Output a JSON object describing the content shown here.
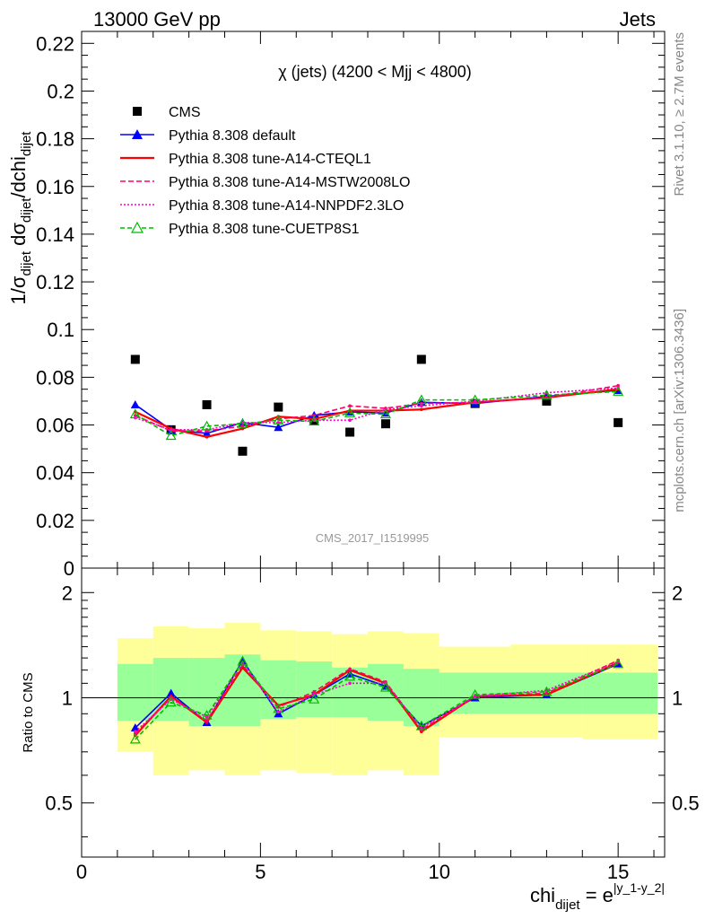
{
  "header": {
    "energy_label": "13000 GeV pp",
    "process_label": "Jets"
  },
  "side_labels": {
    "rivet": "Rivet 3.1.10, ≥ 2.7M events",
    "mcplots": "mcplots.cern.ch [arXiv:1306.3436]"
  },
  "watermark": "CMS_2017_I1519995",
  "chart_data": [
    {
      "type": "scatter",
      "title": "χ (jets) (4200 < Mjj < 4800)",
      "ylabel_parts": {
        "a": "1/σ",
        "a_sub": "dijet",
        "b": " dσ",
        "b_sub": "dijet",
        "c": "/dchi",
        "c_sub": "dijet"
      },
      "xlim": [
        0,
        16.3
      ],
      "ylim": [
        0,
        0.225
      ],
      "yticks": [
        0,
        0.02,
        0.04,
        0.06,
        0.08,
        0.1,
        0.12,
        0.14,
        0.16,
        0.18,
        0.2,
        0.22
      ],
      "ytick_labels": [
        "0",
        "0.02",
        "0.04",
        "0.06",
        "0.08",
        "0.1",
        "0.12",
        "0.14",
        "0.16",
        "0.18",
        "0.2",
        "0.22"
      ],
      "x": [
        1.5,
        2.5,
        3.5,
        4.5,
        5.5,
        6.5,
        7.5,
        8.5,
        9.5,
        11,
        13,
        15
      ],
      "bin_edges": [
        1,
        2,
        3,
        4,
        5,
        6,
        7,
        8,
        9,
        10,
        12,
        14,
        16.1
      ],
      "legend": [
        {
          "label": "CMS",
          "color": "#000000",
          "dash": "",
          "marker": "square"
        },
        {
          "label": "Pythia 8.308 default",
          "color": "#0000ff",
          "dash": "",
          "marker": "triangle"
        },
        {
          "label": "Pythia 8.308 tune-A14-CTEQL1",
          "color": "#ff0000",
          "dash": "",
          "marker": "none"
        },
        {
          "label": "Pythia 8.308 tune-A14-MSTW2008LO",
          "color": "#ff0066",
          "dash": "6,3",
          "marker": "none"
        },
        {
          "label": "Pythia 8.308 tune-A14-NNPDF2.3LO",
          "color": "#ff00cc",
          "dash": "2,2",
          "marker": "none"
        },
        {
          "label": "Pythia 8.308 tune-CUETP8S1",
          "color": "#00bb00",
          "dash": "5,3",
          "marker": "open-triangle"
        }
      ],
      "cms": [
        0.0875,
        0.058,
        0.0685,
        0.049,
        0.0675,
        0.062,
        0.057,
        0.0605,
        0.0875,
        0.069,
        0.07,
        0.061
      ],
      "series": [
        {
          "name": "Pythia 8.308 default",
          "values": [
            0.0685,
            0.058,
            0.0565,
            0.061,
            0.059,
            0.064,
            0.0655,
            0.065,
            0.0695,
            0.069,
            0.072,
            0.0745
          ]
        },
        {
          "name": "Pythia 8.308 tune-A14-CTEQL1",
          "values": [
            0.0655,
            0.0585,
            0.055,
            0.0585,
            0.0635,
            0.0625,
            0.066,
            0.066,
            0.0665,
            0.0695,
            0.0715,
            0.075
          ]
        },
        {
          "name": "Pythia 8.308 tune-A14-MSTW2008LO",
          "values": [
            0.064,
            0.0575,
            0.0575,
            0.0595,
            0.0625,
            0.064,
            0.068,
            0.067,
            0.069,
            0.0695,
            0.0715,
            0.0765
          ]
        },
        {
          "name": "Pythia 8.308 tune-A14-NNPDF2.3LO",
          "values": [
            0.063,
            0.058,
            0.058,
            0.061,
            0.061,
            0.062,
            0.062,
            0.0665,
            0.068,
            0.07,
            0.0735,
            0.0755
          ]
        },
        {
          "name": "Pythia 8.308 tune-CUETP8S1",
          "values": [
            0.0645,
            0.0555,
            0.0595,
            0.0605,
            0.062,
            0.0615,
            0.065,
            0.0645,
            0.0705,
            0.0705,
            0.0725,
            0.074
          ]
        }
      ]
    },
    {
      "type": "scatter",
      "ylabel": "Ratio to CMS",
      "xlabel_parts": {
        "base": "chi",
        "sub": "dijet",
        "eq": " = e",
        "sup": "|y_1-y_2|"
      },
      "xlim": [
        0,
        16.3
      ],
      "ylim": [
        0.35,
        2.35
      ],
      "log_scale": true,
      "reference_line": 1,
      "xticks": [
        0,
        5,
        10,
        15
      ],
      "xtick_labels": [
        "0",
        "5",
        "10",
        "15"
      ],
      "yticks": [
        0.5,
        1,
        2
      ],
      "ytick_labels": [
        "0.5",
        "1",
        "2"
      ],
      "band_colors": {
        "inner": "#99ff99",
        "outer": "#ffff99"
      },
      "band_inner": [
        [
          0.86,
          1.25
        ],
        [
          0.86,
          1.3
        ],
        [
          0.83,
          1.3
        ],
        [
          0.83,
          1.33
        ],
        [
          0.87,
          1.28
        ],
        [
          0.88,
          1.27
        ],
        [
          0.88,
          1.22
        ],
        [
          0.86,
          1.25
        ],
        [
          0.83,
          1.21
        ],
        [
          0.9,
          1.18
        ],
        [
          0.9,
          1.18
        ],
        [
          0.9,
          1.18
        ]
      ],
      "band_outer": [
        [
          0.7,
          1.48
        ],
        [
          0.6,
          1.6
        ],
        [
          0.62,
          1.58
        ],
        [
          0.6,
          1.64
        ],
        [
          0.62,
          1.56
        ],
        [
          0.61,
          1.55
        ],
        [
          0.6,
          1.52
        ],
        [
          0.62,
          1.55
        ],
        [
          0.6,
          1.53
        ],
        [
          0.77,
          1.4
        ],
        [
          0.77,
          1.42
        ],
        [
          0.76,
          1.42
        ]
      ],
      "series": [
        {
          "name": "Pythia 8.308 default",
          "values": [
            0.82,
            1.03,
            0.85,
            1.28,
            0.9,
            1.02,
            1.17,
            1.08,
            0.83,
            1.0,
            1.02,
            1.25
          ]
        },
        {
          "name": "Pythia 8.308 tune-A14-CTEQL1",
          "values": [
            0.78,
            1.01,
            0.85,
            1.22,
            0.95,
            1.02,
            1.2,
            1.1,
            0.8,
            1.01,
            1.02,
            1.26
          ]
        },
        {
          "name": "Pythia 8.308 tune-A14-MSTW2008LO",
          "values": [
            0.79,
            1.0,
            0.86,
            1.24,
            0.94,
            1.04,
            1.21,
            1.11,
            0.81,
            1.01,
            1.03,
            1.28
          ]
        },
        {
          "name": "Pythia 8.308 tune-A14-NNPDF2.3LO",
          "values": [
            0.8,
            0.99,
            0.88,
            1.26,
            0.91,
            1.02,
            1.1,
            1.1,
            0.82,
            1.01,
            1.05,
            1.27
          ]
        },
        {
          "name": "Pythia 8.308 tune-CUETP8S1",
          "values": [
            0.76,
            0.97,
            0.89,
            1.27,
            0.93,
            0.99,
            1.15,
            1.07,
            0.83,
            1.02,
            1.04,
            1.25
          ]
        }
      ]
    }
  ]
}
